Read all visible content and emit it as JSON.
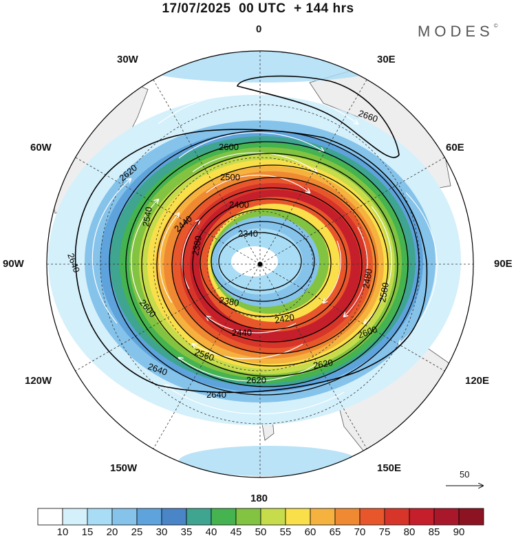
{
  "title": "17/07/2025  00 UTC  + 144 hrs",
  "brand": "MODES",
  "brand_mark": "©",
  "longitude_labels": {
    "lon_0": "0",
    "lon_30e": "30E",
    "lon_60e": "60E",
    "lon_90e": "90E",
    "lon_120e": "120E",
    "lon_150e": "150E",
    "lon_180": "180",
    "lon_150w": "150W",
    "lon_120w": "120W",
    "lon_90w": "90W",
    "lon_60w": "60W",
    "lon_30w": "30W"
  },
  "contour_labels": [
    "2340",
    "2380",
    "2380",
    "2400",
    "2420",
    "2440",
    "2440",
    "2480",
    "2500",
    "2540",
    "2560",
    "2580",
    "2600",
    "2600",
    "2600",
    "2620",
    "2620",
    "2620",
    "2640",
    "2640",
    "2640",
    "2660"
  ],
  "colorbar": {
    "ticks": [
      "10",
      "15",
      "20",
      "25",
      "30",
      "35",
      "40",
      "45",
      "50",
      "55",
      "60",
      "65",
      "70",
      "75",
      "80",
      "85",
      "90"
    ],
    "colors": [
      "#ffffff",
      "#d4f0fb",
      "#a9dcf5",
      "#86c3eb",
      "#5fa3dc",
      "#4a86c7",
      "#3fa591",
      "#45b34f",
      "#82c341",
      "#c6dc4a",
      "#f9e04b",
      "#f6b23f",
      "#f08a32",
      "#e8572b",
      "#d7352a",
      "#c41f2a",
      "#a8182a",
      "#8b1322"
    ]
  },
  "wind_scale_label": "50"
}
